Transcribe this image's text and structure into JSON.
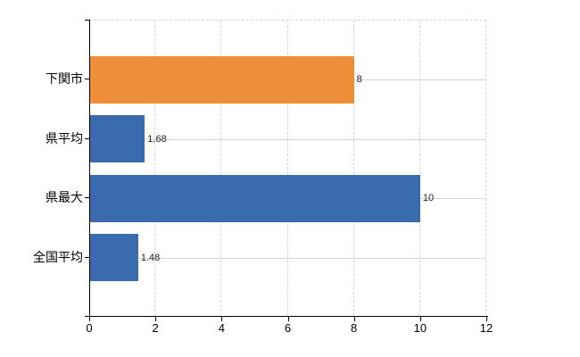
{
  "chart_data": {
    "type": "bar",
    "orientation": "horizontal",
    "title": "",
    "xlabel": "",
    "ylabel": "",
    "categories": [
      "下関市",
      "県平均",
      "県最大",
      "全国平均"
    ],
    "values": [
      8,
      1.68,
      10,
      1.48
    ],
    "value_labels": [
      "8",
      "1.68",
      "10",
      "1.48"
    ],
    "bar_colors": [
      "#ef8e38",
      "#3a6bae",
      "#3a6bae",
      "#3a6bae"
    ],
    "x_ticks": [
      0,
      2,
      4,
      6,
      8,
      10,
      12
    ],
    "x_tick_labels": [
      "0",
      "2",
      "4",
      "6",
      "8",
      "10",
      "12"
    ],
    "xlim": [
      0,
      12
    ],
    "grid": true,
    "legend": false
  },
  "colors": {
    "background": "#ffffff",
    "axis": "#000000",
    "gridline": "#d6d6d6",
    "category_text": "#000000",
    "tick_text": "#000000",
    "value_text": "#222222"
  }
}
